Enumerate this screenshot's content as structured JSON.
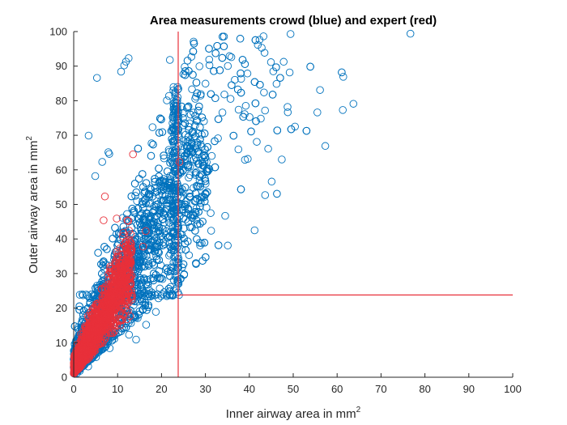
{
  "chart_data": {
    "type": "scatter",
    "title": "Area measurements crowd (blue) and expert (red)",
    "xlabel": "Inner airway area in mm",
    "ylabel": "Outer airway area in mm",
    "label_superscript": "2",
    "xlim": [
      0,
      100
    ],
    "ylim": [
      0,
      100
    ],
    "x_ticks": [
      0,
      10,
      20,
      30,
      40,
      50,
      60,
      70,
      80,
      90,
      100
    ],
    "y_ticks": [
      0,
      10,
      20,
      30,
      40,
      50,
      60,
      70,
      80,
      90,
      100
    ],
    "grid": false,
    "marker": "open-circle",
    "reference_lines": [
      {
        "orientation": "vertical",
        "x": 23.8,
        "y_from": 0,
        "y_to": 100,
        "color": "#e8303a"
      },
      {
        "orientation": "horizontal",
        "y": 23.8,
        "x_from": 23.8,
        "x_to": 100,
        "color": "#e8303a"
      }
    ],
    "series": [
      {
        "color": "#0072bd",
        "approx_point_count": 4000,
        "values": [
          [
            76.7,
            99.4
          ],
          [
            49.4,
            99.3
          ],
          [
            27.3,
            97.1
          ],
          [
            35.5,
            92.9
          ],
          [
            35.9,
            92.6
          ],
          [
            10.8,
            88.4
          ],
          [
            11.5,
            90.2
          ],
          [
            11.9,
            91.3
          ],
          [
            12.5,
            92.3
          ],
          [
            21.9,
            91.8
          ],
          [
            5.3,
            86.6
          ],
          [
            61.4,
            86.9
          ],
          [
            56.1,
            83.1
          ],
          [
            48.7,
            78.2
          ],
          [
            61.3,
            77.3
          ],
          [
            63.7,
            79.1
          ],
          [
            55.5,
            76.6
          ],
          [
            57.3,
            66.9
          ],
          [
            50.4,
            72.5
          ],
          [
            44.3,
            66.1
          ],
          [
            41.7,
            68.1
          ],
          [
            45.1,
            56.6
          ],
          [
            43.6,
            52.7
          ],
          [
            41.2,
            42.5
          ],
          [
            34.5,
            46.7
          ],
          [
            31.2,
            47.5
          ],
          [
            35.1,
            38.1
          ],
          [
            30.9,
            60.2
          ],
          [
            39.0,
            62.9
          ],
          [
            47.4,
            63.0
          ],
          [
            8.1,
            64.6
          ],
          [
            3.4,
            69.9
          ],
          [
            6.5,
            62.3
          ],
          [
            7.9,
            65.1
          ],
          [
            4.9,
            58.2
          ],
          [
            17.8,
            39.2
          ],
          [
            14.1,
            33.8
          ],
          [
            20.6,
            41.6
          ],
          [
            24.7,
            31.8
          ],
          [
            28.7,
            38.9
          ],
          [
            21.2,
            23.9
          ],
          [
            24.0,
            23.8
          ],
          [
            19.6,
            25.7
          ],
          [
            17.8,
            23.9
          ],
          [
            2.1,
            23.7
          ],
          [
            1.0,
            14.4
          ],
          [
            0.6,
            6.3
          ],
          [
            1.4,
            1.8
          ],
          [
            0.8,
            1.2
          ],
          [
            3.3,
            3.1
          ],
          [
            5.1,
            5.8
          ],
          [
            8.2,
            8.4
          ],
          [
            12.6,
            12.3
          ],
          [
            16.5,
            15.2
          ],
          [
            18.7,
            18.9
          ],
          [
            14.2,
            10.9
          ]
        ]
      },
      {
        "color": "#e8303a",
        "approx_point_count": 1500,
        "values": [
          [
            13.5,
            64.5
          ],
          [
            7.1,
            52.3
          ],
          [
            6.8,
            45.4
          ],
          [
            9.8,
            45.9
          ],
          [
            16.4,
            42.3
          ],
          [
            24.1,
            62.3
          ],
          [
            10.8,
            31.5
          ],
          [
            12.7,
            33.9
          ],
          [
            15.8,
            37.8
          ],
          [
            4.3,
            19.7
          ],
          [
            0.5,
            5.6
          ],
          [
            1.3,
            3.8
          ],
          [
            2.8,
            6.1
          ],
          [
            0.8,
            2.1
          ]
        ]
      }
    ]
  }
}
